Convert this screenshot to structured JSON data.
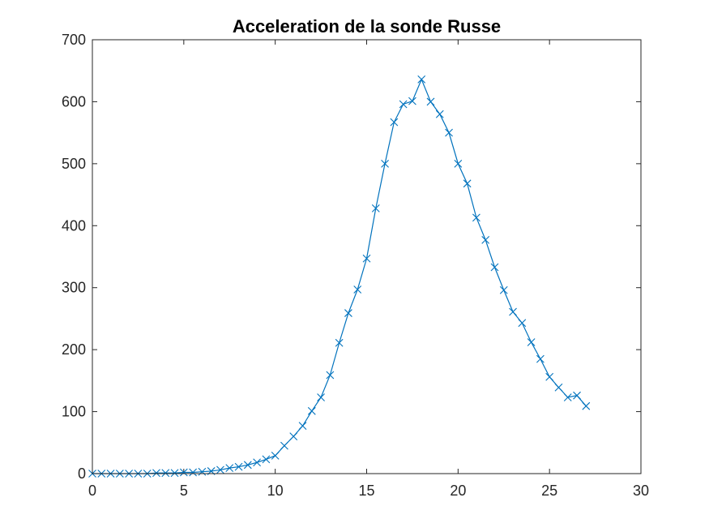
{
  "chart_data": {
    "type": "line",
    "title": "Acceleration de la sonde Russe",
    "xlabel": "",
    "ylabel": "",
    "xlim": [
      0,
      30
    ],
    "ylim": [
      0,
      700
    ],
    "xticks": [
      0,
      5,
      10,
      15,
      20,
      25,
      30
    ],
    "yticks": [
      0,
      100,
      200,
      300,
      400,
      500,
      600,
      700
    ],
    "grid": false,
    "legend": false,
    "series_color": "#0072BD",
    "marker": "x",
    "x": [
      0,
      0.5,
      1,
      1.5,
      2,
      2.5,
      3,
      3.5,
      4,
      4.5,
      5,
      5.5,
      6,
      6.5,
      7,
      7.5,
      8,
      8.5,
      9,
      9.5,
      10,
      10.5,
      11,
      11.5,
      12,
      12.5,
      13,
      13.5,
      14,
      14.5,
      15,
      15.5,
      16,
      16.5,
      17,
      17.5,
      18,
      18.5,
      19,
      19.5,
      20,
      20.5,
      21,
      21.5,
      22,
      22.5,
      23,
      23.5,
      24,
      24.5,
      25,
      25.5,
      26,
      26.5,
      27
    ],
    "y": [
      0,
      0,
      0,
      0,
      0,
      0,
      0,
      1,
      1,
      1,
      2,
      2,
      3,
      4,
      6,
      9,
      11,
      14,
      18,
      23,
      29,
      45,
      60,
      77,
      101,
      123,
      159,
      211,
      259,
      297,
      347,
      428,
      500,
      567,
      596,
      601,
      636,
      600,
      580,
      550,
      500,
      468,
      413,
      377,
      333,
      296,
      261,
      243,
      212,
      185,
      156,
      139,
      123,
      126,
      109
    ]
  }
}
